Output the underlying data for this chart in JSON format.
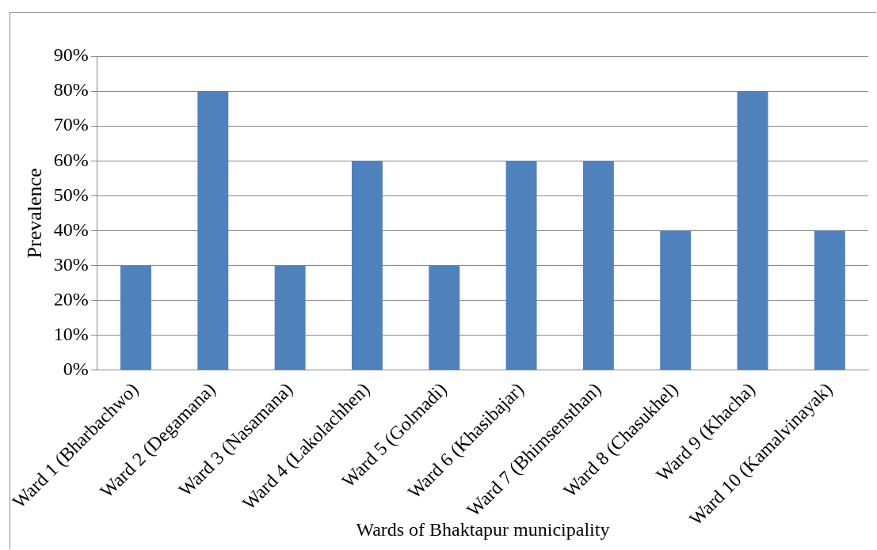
{
  "chart_data": {
    "type": "bar",
    "categories": [
      "Ward 1 (Bharbachwo)",
      "Ward 2 (Degamana)",
      "Ward 3 (Nasamana)",
      "Ward 4 (Lakolachhen)",
      "Ward 5 (Golmadi)",
      "Ward 6 (Khasibajar)",
      "Ward 7 (Bhimsensthan)",
      "Ward 8 (Chasukhel)",
      "Ward 9 (Khacha)",
      "Ward 10 (Kamalvinayak)"
    ],
    "values": [
      30,
      80,
      30,
      60,
      30,
      60,
      60,
      40,
      80,
      40
    ],
    "color": "#4f81bd",
    "xlabel": "Wards of Bhaktapur municipality",
    "ylabel": "Prevalence",
    "ylim": [
      0,
      90
    ],
    "yticks": [
      {
        "value": 0,
        "label": "0%"
      },
      {
        "value": 10,
        "label": "10%"
      },
      {
        "value": 20,
        "label": "20%"
      },
      {
        "value": 30,
        "label": "30%"
      },
      {
        "value": 40,
        "label": "40%"
      },
      {
        "value": 50,
        "label": "50%"
      },
      {
        "value": 60,
        "label": "60%"
      },
      {
        "value": 70,
        "label": "70%"
      },
      {
        "value": 80,
        "label": "80%"
      },
      {
        "value": 90,
        "label": "90%"
      }
    ],
    "grid": "y",
    "legend": false
  }
}
